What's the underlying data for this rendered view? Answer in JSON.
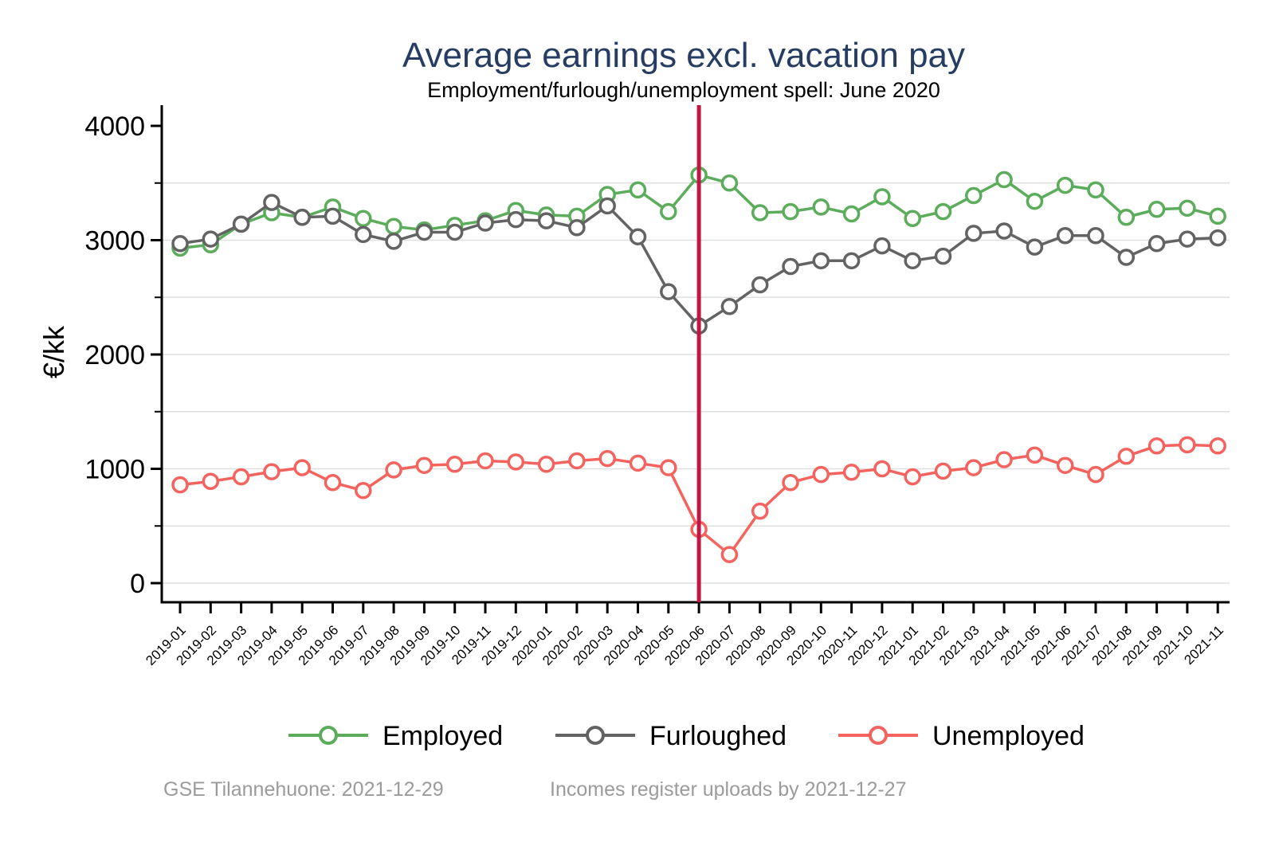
{
  "title": "Average earnings excl. vacation pay",
  "subtitle": "Employment/furlough/unemployment spell: June 2020",
  "ylabel": "€/kk",
  "footer": {
    "left": "GSE Tilannehuone: 2021-12-29",
    "right": "Incomes register uploads by 2021-12-27"
  },
  "colors": {
    "title": "#253c63",
    "subtitle": "#000000",
    "axis": "#000000",
    "grid": "#dfdfdf",
    "footer": "#9b9b9b",
    "vline": "#c01747",
    "employed": "#5bac5b",
    "furloughed": "#636363",
    "unemployed": "#f4635e"
  },
  "chart_data": {
    "type": "line",
    "title": "Average earnings excl. vacation pay",
    "subtitle": "Employment/furlough/unemployment spell: June 2020",
    "xlabel": "",
    "ylabel": "€/kk",
    "ylim": [
      0,
      4000
    ],
    "yticks_major": [
      0,
      1000,
      2000,
      3000,
      4000
    ],
    "yticks_minor": [
      500,
      1500,
      2500,
      3500
    ],
    "grid": true,
    "legend_position": "bottom",
    "vline": {
      "at": "2020-06",
      "color": "#c01747"
    },
    "categories": [
      "2019-01",
      "2019-02",
      "2019-03",
      "2019-04",
      "2019-05",
      "2019-06",
      "2019-07",
      "2019-08",
      "2019-09",
      "2019-10",
      "2019-11",
      "2019-12",
      "2020-01",
      "2020-02",
      "2020-03",
      "2020-04",
      "2020-05",
      "2020-06",
      "2020-07",
      "2020-08",
      "2020-09",
      "2020-10",
      "2020-11",
      "2020-12",
      "2021-01",
      "2021-02",
      "2021-03",
      "2021-04",
      "2021-05",
      "2021-06",
      "2021-07",
      "2021-08",
      "2021-09",
      "2021-10",
      "2021-11"
    ],
    "series": [
      {
        "name": "Employed",
        "color": "#5bac5b",
        "values": [
          2930,
          2960,
          3140,
          3240,
          3200,
          3290,
          3190,
          3120,
          3090,
          3130,
          3170,
          3260,
          3220,
          3210,
          3400,
          3440,
          3250,
          3570,
          3500,
          3240,
          3250,
          3290,
          3230,
          3380,
          3190,
          3250,
          3390,
          3530,
          3340,
          3480,
          3440,
          3200,
          3270,
          3280,
          3210
        ]
      },
      {
        "name": "Furloughed",
        "color": "#636363",
        "values": [
          2970,
          3010,
          3140,
          3330,
          3200,
          3210,
          3050,
          2990,
          3070,
          3070,
          3150,
          3180,
          3170,
          3110,
          3300,
          3030,
          2550,
          2250,
          2420,
          2610,
          2770,
          2820,
          2820,
          2950,
          2820,
          2860,
          3060,
          3080,
          2940,
          3040,
          3040,
          2850,
          2970,
          3010,
          3020
        ]
      },
      {
        "name": "Unemployed",
        "color": "#f4635e",
        "values": [
          860,
          890,
          930,
          975,
          1010,
          880,
          810,
          990,
          1030,
          1040,
          1070,
          1060,
          1040,
          1070,
          1090,
          1050,
          1010,
          470,
          250,
          630,
          880,
          950,
          970,
          1000,
          930,
          980,
          1010,
          1080,
          1120,
          1030,
          950,
          1110,
          1200,
          1210,
          1200
        ]
      }
    ]
  }
}
